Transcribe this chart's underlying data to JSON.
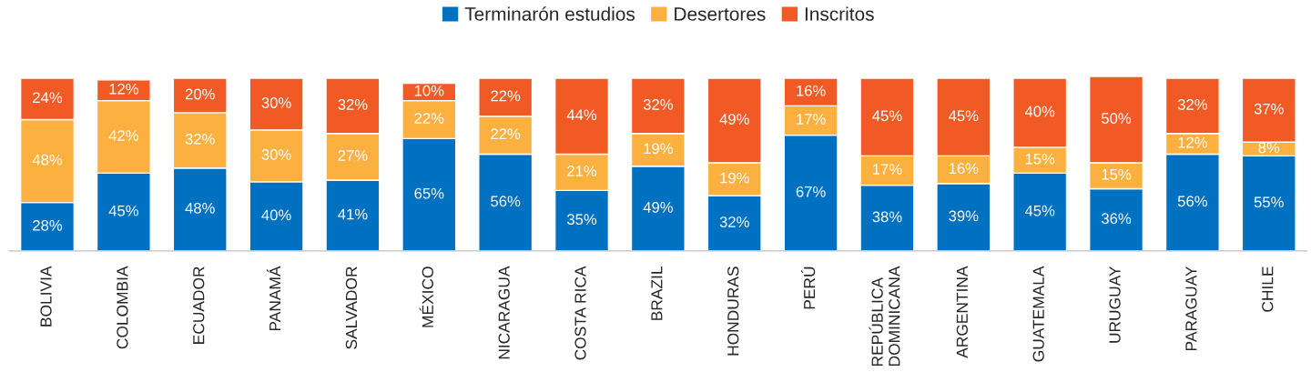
{
  "chart_data": {
    "type": "bar",
    "stacked": true,
    "legend": "top",
    "categories": [
      "BOLIVIA",
      "COLOMBIA",
      "ECUADOR",
      "PANAMÁ",
      "SALVADOR",
      "MÉXICO",
      "NICARAGUA",
      "COSTA RICA",
      "BRAZIL",
      "HONDURAS",
      "PERÚ",
      "REPÚBLICA\nDOMINICANA",
      "ARGENTINA",
      "GUATEMALA",
      "URUGUAY",
      "PARAGUAY",
      "CHILE"
    ],
    "series": [
      {
        "name": "Terminarón estudios",
        "color": "#0070c0",
        "values": [
          28,
          45,
          48,
          40,
          41,
          65,
          56,
          35,
          49,
          32,
          67,
          38,
          39,
          45,
          36,
          56,
          55
        ],
        "value_labels": [
          "28%",
          "45%",
          "48%",
          "40%",
          "41%",
          "65%",
          "56%",
          "35%",
          "49%",
          "32%",
          "67%",
          "38%",
          "39%",
          "45%",
          "36%",
          "56%",
          "55%"
        ]
      },
      {
        "name": "Desertores",
        "color": "#fbb040",
        "values": [
          48,
          42,
          32,
          30,
          27,
          22,
          22,
          21,
          19,
          19,
          17,
          17,
          16,
          15,
          15,
          12,
          8
        ],
        "value_labels": [
          "48%",
          "42%",
          "32%",
          "30%",
          "27%",
          "22%",
          "22%",
          "21%",
          "19%",
          "19%",
          "17%",
          "17%",
          "16%",
          "15%",
          "15%",
          "12%",
          "8%"
        ]
      },
      {
        "name": "Inscritos",
        "color": "#f15a24",
        "values": [
          24,
          12,
          20,
          30,
          32,
          10,
          22,
          44,
          32,
          49,
          16,
          45,
          45,
          40,
          50,
          32,
          37
        ],
        "value_labels": [
          "24%",
          "12%",
          "20%",
          "30%",
          "32%",
          "10%",
          "22%",
          "44%",
          "32%",
          "49%",
          "16%",
          "45%",
          "45%",
          "40%",
          "50%",
          "32%",
          "37%"
        ]
      }
    ]
  }
}
